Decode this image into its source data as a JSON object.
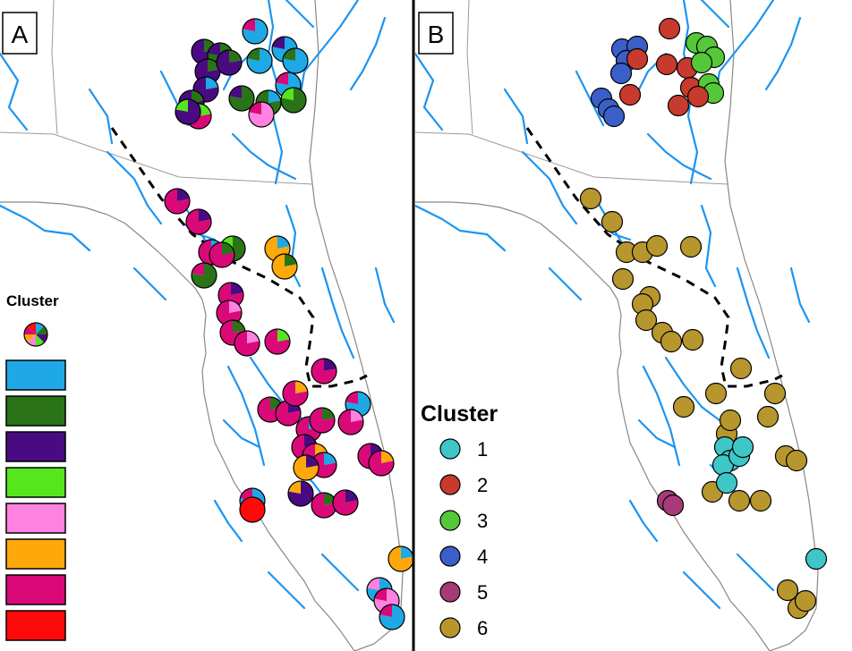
{
  "panels": [
    {
      "label": "A"
    },
    {
      "label": "B"
    }
  ],
  "legend_a": {
    "title": "Cluster",
    "swatch_colors": [
      "#1ea9e6",
      "#2a7417",
      "#4a0b82",
      "#55e61e",
      "#ff82e0",
      "#ffa80a",
      "#d9097a",
      "#ff0a0a"
    ]
  },
  "legend_b": {
    "title": "Cluster",
    "items": [
      {
        "label": "1",
        "color": "#3fc6c6"
      },
      {
        "label": "2",
        "color": "#c83a2e"
      },
      {
        "label": "3",
        "color": "#55c83a"
      },
      {
        "label": "4",
        "color": "#3a5fc8"
      },
      {
        "label": "5",
        "color": "#a83a7a"
      },
      {
        "label": "6",
        "color": "#b8962e"
      }
    ]
  },
  "styles": {
    "river_color": "#1c94f0",
    "coast_color": "#888888",
    "boundary_color": "#9a9a9a"
  }
}
